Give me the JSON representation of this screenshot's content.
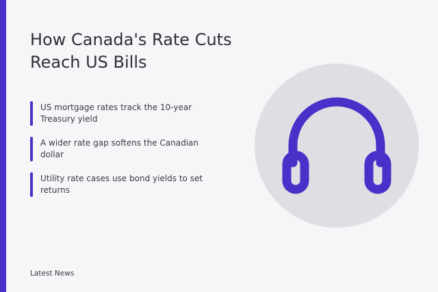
{
  "slide": {
    "title": "How Canada's Rate Cuts Reach US Bills",
    "bullets": [
      {
        "text": "US mortgage rates track the 10-year Treasury yield"
      },
      {
        "text": "A wider rate gap softens the Canadian dollar"
      },
      {
        "text": "Utility rate cases use bond yields to set returns"
      }
    ],
    "footer": "Latest News"
  },
  "illustration": {
    "icon": "headphones-icon",
    "icon_color": "#4b2fc9",
    "circle_color": "#dedee3"
  },
  "colors": {
    "accent": "#4b2fc9",
    "background": "#f6f6f8",
    "text": "#2e2e36"
  }
}
